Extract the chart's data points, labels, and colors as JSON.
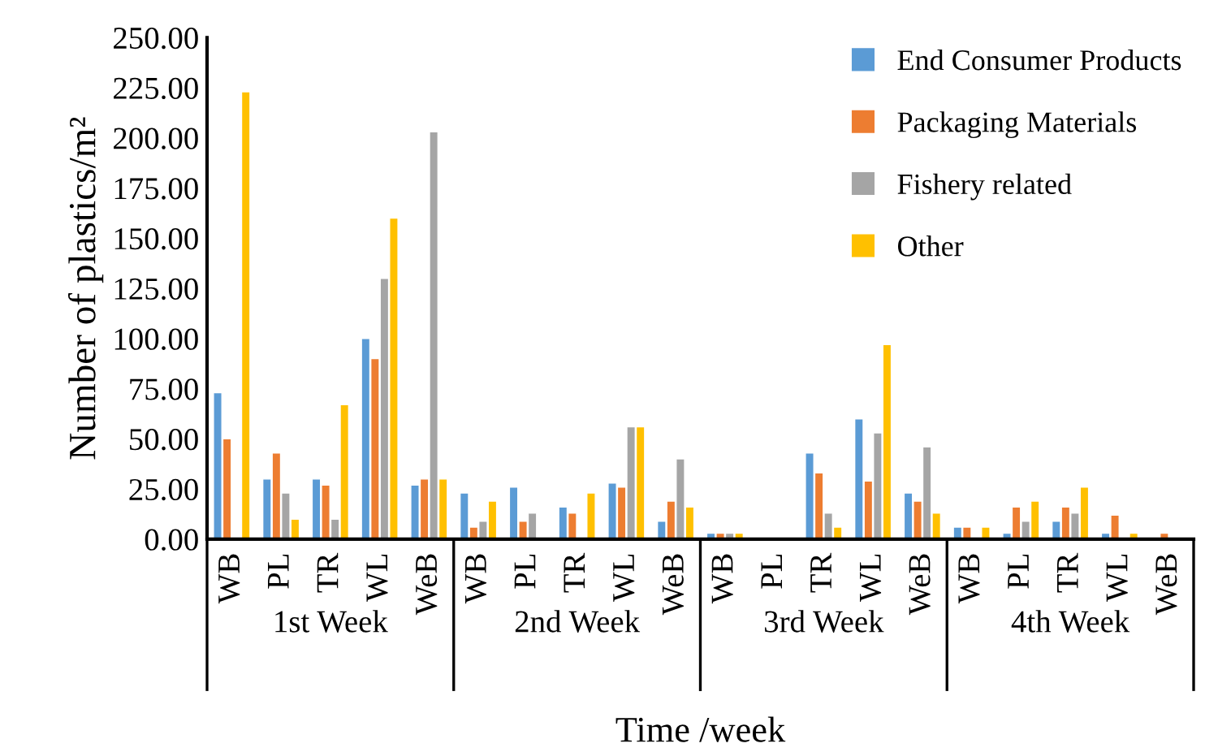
{
  "chart_data": {
    "type": "bar",
    "xlabel": "Time /week",
    "ylabel": "Number of plastics/m²",
    "categories": [
      "WB",
      "PL",
      "TR",
      "WL",
      "WeB",
      "WB",
      "PL",
      "TR",
      "WL",
      "WeB",
      "WB",
      "PL",
      "TR",
      "WL",
      "WeB",
      "WB",
      "PL",
      "TR",
      "WL",
      "WeB"
    ],
    "annotations": [
      "1st Week",
      "2nd Week",
      "3rd Week",
      "4th Week"
    ],
    "series": [
      {
        "name": "End Consumer Products",
        "color": "#5b9bd5",
        "values": [
          73,
          30,
          30,
          100,
          27,
          23,
          26,
          16,
          28,
          9,
          3,
          null,
          43,
          60,
          23,
          6,
          3,
          9,
          3,
          null
        ]
      },
      {
        "name": "Packaging Materials",
        "color": "#ed7d31",
        "values": [
          50,
          43,
          27,
          90,
          30,
          6,
          9,
          13,
          26,
          19,
          3,
          null,
          33,
          29,
          19,
          6,
          16,
          16,
          12,
          3
        ]
      },
      {
        "name": "Fishery related",
        "color": "#a5a5a5",
        "values": [
          null,
          23,
          10,
          130,
          203,
          9,
          13,
          null,
          56,
          40,
          3,
          null,
          13,
          53,
          46,
          null,
          9,
          13,
          null,
          null
        ]
      },
      {
        "name": "Other",
        "color": "#ffc000",
        "values": [
          223,
          10,
          67,
          160,
          30,
          19,
          null,
          23,
          56,
          16,
          3,
          null,
          6,
          97,
          13,
          6,
          19,
          26,
          3,
          null
        ]
      }
    ],
    "ylim": [
      0,
      250
    ],
    "yticks": [
      {
        "value": 0,
        "label": "0.00"
      },
      {
        "value": 25,
        "label": "25.00"
      },
      {
        "value": 50,
        "label": "50.00"
      },
      {
        "value": 75,
        "label": "75.00"
      },
      {
        "value": 100,
        "label": "100.00"
      },
      {
        "value": 125,
        "label": "125.00"
      },
      {
        "value": 150,
        "label": "150.00"
      },
      {
        "value": 175,
        "label": "175.00"
      },
      {
        "value": 200,
        "label": "200.00"
      },
      {
        "value": 225,
        "label": "225.00"
      },
      {
        "value": 250,
        "label": "250.00"
      }
    ],
    "grid": false,
    "legend": "top right"
  }
}
